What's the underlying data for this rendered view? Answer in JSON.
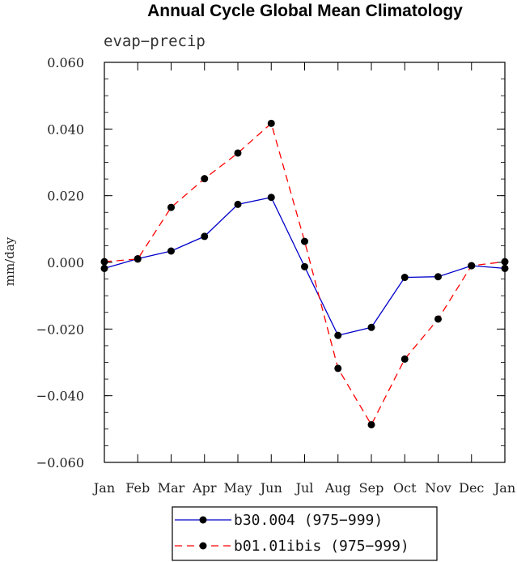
{
  "chart_data": {
    "type": "line",
    "title": "Annual Cycle Global Mean Climatology",
    "subtitle": "evap−precip",
    "xlabel": "",
    "ylabel": "mm/day",
    "categories": [
      "Jan",
      "Feb",
      "Mar",
      "Apr",
      "May",
      "Jun",
      "Jul",
      "Aug",
      "Sep",
      "Oct",
      "Nov",
      "Dec",
      "Jan"
    ],
    "ylim": [
      -0.06,
      0.06
    ],
    "yticks": [
      0.06,
      0.04,
      0.02,
      0.0,
      -0.02,
      -0.04,
      -0.06
    ],
    "ytick_labels": [
      "0.060",
      "0.040",
      "0.020",
      "0.000",
      "−0.020",
      "−0.040",
      "−0.060"
    ],
    "series": [
      {
        "name": "b30.004 (975−999)",
        "color": "#0000cc",
        "dash": "solid",
        "values": [
          -0.0018,
          0.0011,
          0.0034,
          0.0078,
          0.0174,
          0.0195,
          -0.0013,
          -0.0219,
          -0.0195,
          -0.0045,
          -0.0043,
          -0.001,
          -0.0018
        ]
      },
      {
        "name": "b01.01ibis (975−999)",
        "color": "#ff0000",
        "dash": "dashed",
        "values": [
          0.0002,
          0.001,
          0.0165,
          0.0251,
          0.0328,
          0.0417,
          0.0063,
          -0.0318,
          -0.0487,
          -0.029,
          -0.017,
          -0.001,
          0.0002
        ]
      }
    ],
    "legend_position": "bottom-center"
  }
}
